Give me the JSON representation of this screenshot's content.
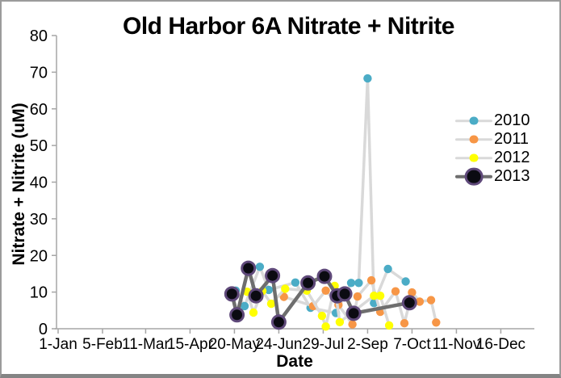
{
  "window": {
    "background": "#ffffff",
    "border_color": "#9b9b9b",
    "axis_color": "#a6a6a6",
    "text_color": "#000000"
  },
  "chart_data": {
    "type": "line",
    "title": "Old Harbor 6A Nitrate + Nitrite",
    "xlabel": "Date",
    "ylabel": "Nitrate + Nitrite (uM)",
    "ylim": [
      0,
      80
    ],
    "yticks": [
      0,
      10,
      20,
      30,
      40,
      50,
      60,
      70,
      80
    ],
    "xticks": [
      "1-Jan",
      "5-Feb",
      "11-Mar",
      "15-Apr",
      "20-May",
      "24-Jun",
      "29-Jul",
      "2-Sep",
      "7-Oct",
      "11-Nov",
      "16-Dec"
    ],
    "grid": false,
    "legend_position": "right",
    "series": [
      {
        "name": "2010",
        "marker_color": "#4BACC6",
        "marker_outline": "none",
        "line_color": "#D9D9D9",
        "line_width": 3.5,
        "marker_size": 5.2,
        "points": [
          {
            "date": "21-May",
            "value": 10.4
          },
          {
            "date": "28-May",
            "value": 6.2
          },
          {
            "date": "9-Jun",
            "value": 16.9
          },
          {
            "date": "16-Jun",
            "value": 10.6
          },
          {
            "date": "7-Jul",
            "value": 12.6
          },
          {
            "date": "19-Jul",
            "value": 5.7
          },
          {
            "date": "8-Aug",
            "value": 4.3
          },
          {
            "date": "20-Aug",
            "value": 12.5
          },
          {
            "date": "26-Aug",
            "value": 12.5
          },
          {
            "date": "2-Sep",
            "value": 68.3
          },
          {
            "date": "7-Sep",
            "value": 7.0
          },
          {
            "date": "18-Sep",
            "value": 16.3
          },
          {
            "date": "2-Oct",
            "value": 12.9
          }
        ]
      },
      {
        "name": "2011",
        "marker_color": "#F79646",
        "marker_outline": "none",
        "line_color": "#D9D9D9",
        "line_width": 3.5,
        "marker_size": 5.2,
        "points": [
          {
            "date": "28-Jun",
            "value": 8.7
          },
          {
            "date": "21-Jul",
            "value": 6.2
          },
          {
            "date": "31-Jul",
            "value": 10.4
          },
          {
            "date": "10-Aug",
            "value": 6.5
          },
          {
            "date": "21-Aug",
            "value": 1.2
          },
          {
            "date": "25-Aug",
            "value": 8.8
          },
          {
            "date": "5-Sep",
            "value": 13.2
          },
          {
            "date": "12-Sep",
            "value": 4.6
          },
          {
            "date": "24-Sep",
            "value": 10.2
          },
          {
            "date": "1-Oct",
            "value": 1.5
          },
          {
            "date": "7-Oct",
            "value": 9.9
          },
          {
            "date": "13-Oct",
            "value": 7.4
          },
          {
            "date": "22-Oct",
            "value": 7.8
          },
          {
            "date": "26-Oct",
            "value": 1.7
          }
        ]
      },
      {
        "name": "2012",
        "marker_color": "#FFFF00",
        "marker_outline": "none",
        "line_color": "#D9D9D9",
        "line_width": 3.5,
        "marker_size": 5.2,
        "points": [
          {
            "date": "30-May",
            "value": 10.1
          },
          {
            "date": "4-Jun",
            "value": 4.4
          },
          {
            "date": "11-Jun",
            "value": 10.3
          },
          {
            "date": "18-Jun",
            "value": 6.8
          },
          {
            "date": "29-Jun",
            "value": 10.9
          },
          {
            "date": "16-Jul",
            "value": 10.4
          },
          {
            "date": "28-Jul",
            "value": 3.5
          },
          {
            "date": "31-Jul",
            "value": 0.6
          },
          {
            "date": "7-Aug",
            "value": 11.7
          },
          {
            "date": "11-Aug",
            "value": 1.8
          },
          {
            "date": "7-Sep",
            "value": 9.0
          },
          {
            "date": "12-Sep",
            "value": 9.0
          },
          {
            "date": "19-Sep",
            "value": 0.9
          }
        ]
      },
      {
        "name": "2013",
        "marker_color": "#0b0b12",
        "marker_outline": "#5F497A",
        "line_color": "#6E6E6E",
        "line_width": 4.5,
        "marker_size": 8,
        "points": [
          {
            "date": "18-May",
            "value": 9.5
          },
          {
            "date": "22-May",
            "value": 3.8
          },
          {
            "date": "31-May",
            "value": 16.5
          },
          {
            "date": "6-Jun",
            "value": 9.0
          },
          {
            "date": "19-Jun",
            "value": 14.5
          },
          {
            "date": "24-Jun",
            "value": 1.8
          },
          {
            "date": "17-Jul",
            "value": 12.5
          },
          {
            "date": "30-Jul",
            "value": 14.3
          },
          {
            "date": "9-Aug",
            "value": 9.0
          },
          {
            "date": "15-Aug",
            "value": 9.5
          },
          {
            "date": "22-Aug",
            "value": 4.2
          },
          {
            "date": "5-Oct",
            "value": 7.1
          }
        ]
      }
    ]
  }
}
